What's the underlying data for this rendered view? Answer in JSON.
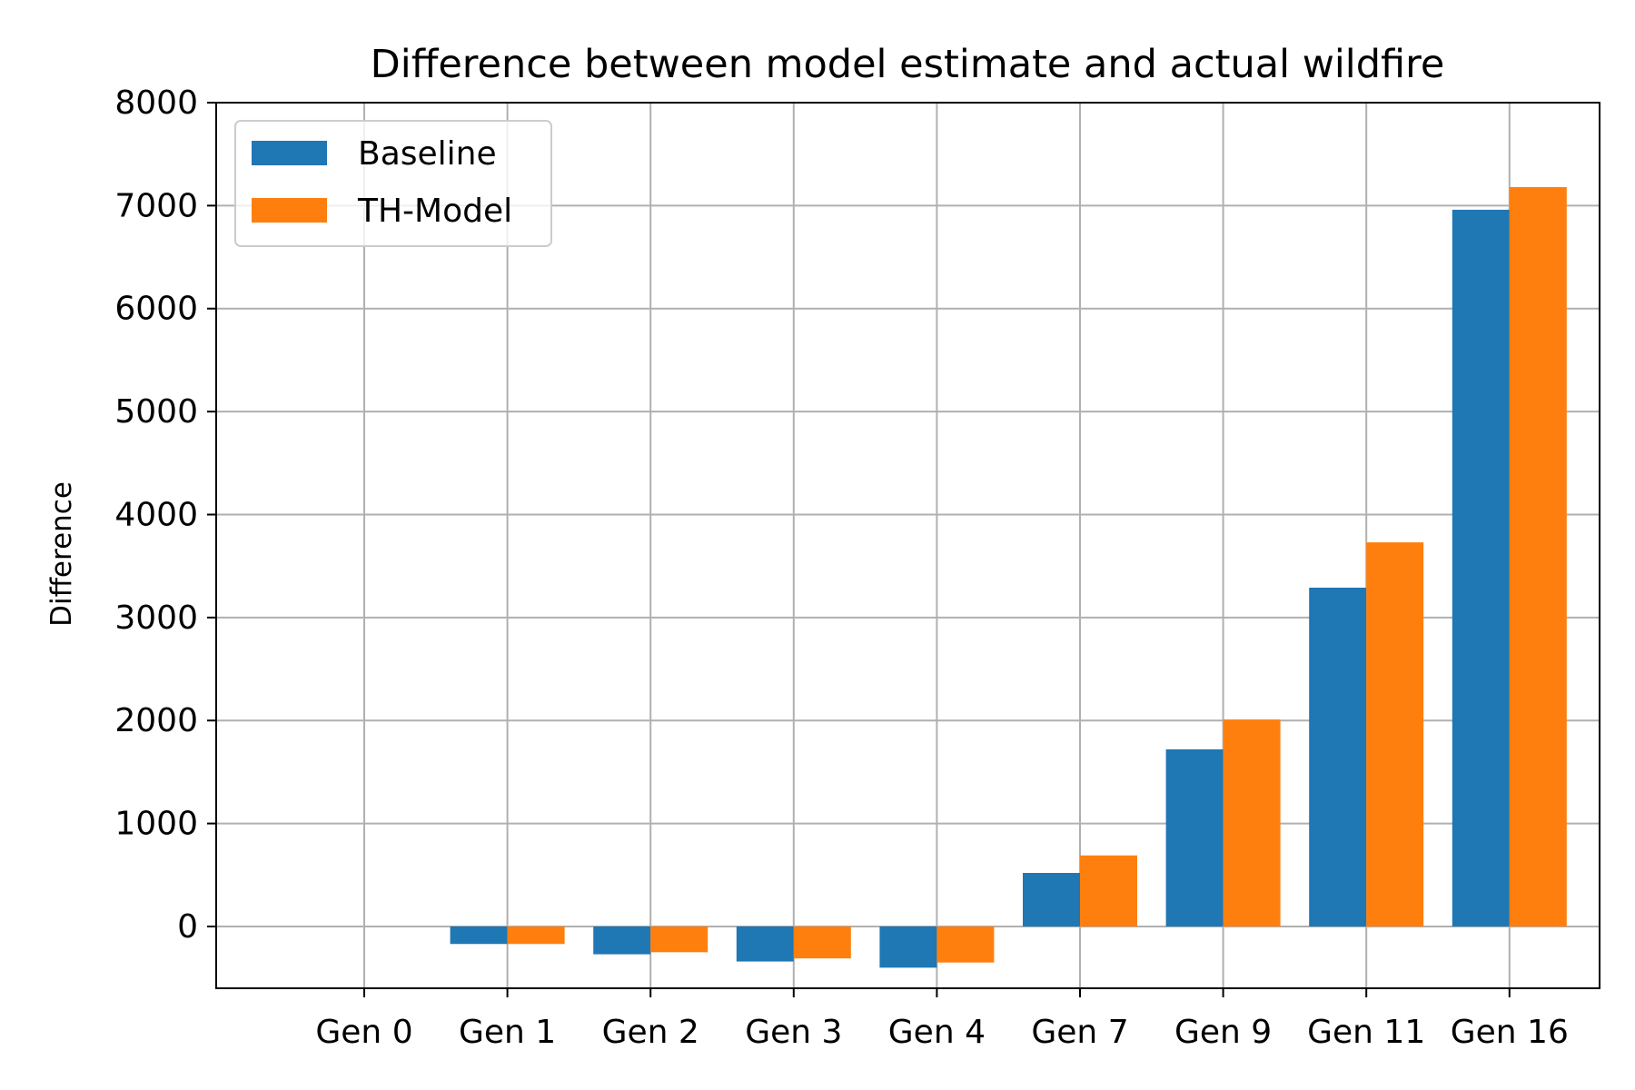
{
  "chart_data": {
    "type": "bar",
    "title": "Difference between model estimate and actual wildfire",
    "xlabel": "",
    "ylabel": "Difference",
    "categories": [
      "Gen 0",
      "Gen 1",
      "Gen 2",
      "Gen 3",
      "Gen 4",
      "Gen 7",
      "Gen 9",
      "Gen 11",
      "Gen 16"
    ],
    "series": [
      {
        "name": "Baseline",
        "color": "#1f77b4",
        "values": [
          0,
          -170,
          -270,
          -340,
          -400,
          520,
          1720,
          3290,
          6960
        ]
      },
      {
        "name": "TH-Model",
        "color": "#ff7f0e",
        "values": [
          0,
          -170,
          -250,
          -310,
          -350,
          690,
          2010,
          3730,
          7180
        ]
      }
    ],
    "ylim": [
      -600,
      8000
    ],
    "yticks": [
      0,
      1000,
      2000,
      3000,
      4000,
      5000,
      6000,
      7000,
      8000
    ],
    "grid": true,
    "legend_position": "top-left"
  }
}
